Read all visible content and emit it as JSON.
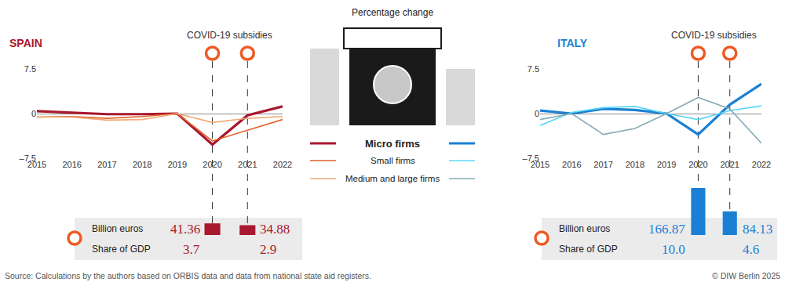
{
  "title": "Percentage change",
  "source": "Source: Calculations by the authors based on ORBIS data and data from national state aid registers.",
  "credit": "© DIW Berlin 2025",
  "chart_data": [
    {
      "type": "line",
      "title": "SPAIN",
      "color": "#a8182e",
      "x": [
        2015,
        2016,
        2017,
        2018,
        2019,
        2020,
        2021,
        2022
      ],
      "xlim": [
        2015,
        2022
      ],
      "xticks": [
        2015,
        2016,
        2017,
        2018,
        2019,
        2020,
        2021,
        2022
      ],
      "ylim": [
        -7.5,
        7.5
      ],
      "yticks": [
        7.5,
        0,
        {
          "value": -7.5,
          "label": "–7.5"
        }
      ],
      "grid": true,
      "series": [
        {
          "name": "Micro firms",
          "color": "#a8182e",
          "values": [
            0.4,
            0.1,
            -0.1,
            -0.1,
            0,
            -5.2,
            -0.3,
            1.2
          ]
        },
        {
          "name": "Small firms",
          "color": "#e2612b",
          "values": [
            -0.6,
            -0.5,
            -0.8,
            -0.5,
            0,
            -4.6,
            -2.8,
            -1.0
          ]
        },
        {
          "name": "Medium and large firms",
          "color": "#f2aa78",
          "values": [
            -0.6,
            -0.6,
            -1.1,
            -1.0,
            0,
            -1.5,
            -0.8,
            -0.5
          ]
        }
      ],
      "subsidies": {
        "type": "bar",
        "title": "COVID-19 subsidies",
        "x": [
          2020,
          2021
        ],
        "values": [
          41.36,
          34.88
        ],
        "ylim": [
          0,
          170
        ],
        "tick_labels": false,
        "data_labels": true,
        "row_labels": [
          "Billion euros",
          "Share of GDP"
        ],
        "share_of_gdp": [
          3.7,
          2.9
        ]
      }
    },
    {
      "type": "line",
      "title": "ITALY",
      "color": "#1b80d4",
      "x": [
        2015,
        2016,
        2017,
        2018,
        2019,
        2020,
        2021,
        2022
      ],
      "xlim": [
        2015,
        2022
      ],
      "xticks": [
        2015,
        2016,
        2017,
        2018,
        2019,
        2020,
        2021,
        2022
      ],
      "ylim": [
        -7.5,
        7.5
      ],
      "yticks": [
        7.5,
        0,
        {
          "value": -7.5,
          "label": "–7.5"
        }
      ],
      "grid": true,
      "series": [
        {
          "name": "Micro firms",
          "color": "#1b80d4",
          "values": [
            0.5,
            0.0,
            0.8,
            0.6,
            0,
            -3.5,
            1.5,
            5.0
          ]
        },
        {
          "name": "Small firms",
          "color": "#5ad8f5",
          "values": [
            -2.0,
            0.2,
            1.0,
            1.2,
            0,
            -1.0,
            0.5,
            1.3
          ]
        },
        {
          "name": "Medium and large firms",
          "color": "#87aab8",
          "values": [
            -1.0,
            0.0,
            -3.5,
            -2.5,
            0,
            2.7,
            0.8,
            -5.0
          ]
        }
      ],
      "subsidies": {
        "type": "bar",
        "title": "COVID-19 subsidies",
        "x": [
          2020,
          2021
        ],
        "values": [
          166.87,
          84.13
        ],
        "ylim": [
          0,
          170
        ],
        "tick_labels": false,
        "data_labels": true,
        "row_labels": [
          "Billion euros",
          "Share of GDP"
        ],
        "share_of_gdp": [
          {
            "value": 10.0,
            "label": "10.0"
          },
          4.6
        ]
      }
    }
  ]
}
